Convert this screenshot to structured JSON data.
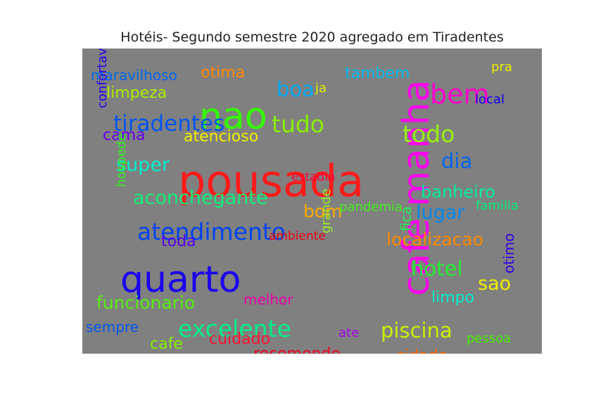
{
  "chart_data": {
    "type": "wordcloud",
    "title": "Hotéis- Segundo semestre 2020 agregado em Tiradentes",
    "background": "#808080",
    "words": [
      {
        "text": "pousada",
        "color": "#ff1a1a"
      },
      {
        "text": "cafe manha",
        "color": "#ff00ee"
      },
      {
        "text": "quarto",
        "color": "#1a00ee"
      },
      {
        "text": "nao",
        "color": "#33ff00"
      },
      {
        "text": "atendimento",
        "color": "#0044ee"
      },
      {
        "text": "bem",
        "color": "#ff00cc"
      },
      {
        "text": "excelente",
        "color": "#00ee88"
      },
      {
        "text": "tiradentes",
        "color": "#0055ee"
      },
      {
        "text": "tudo",
        "color": "#88ee00"
      },
      {
        "text": "todo",
        "color": "#99ee11"
      },
      {
        "text": "aconchegante",
        "color": "#11ee77"
      },
      {
        "text": "super",
        "color": "#00eecc"
      },
      {
        "text": "localizacao",
        "color": "#ff8800"
      },
      {
        "text": "hotel",
        "color": "#22ee33"
      },
      {
        "text": "piscina",
        "color": "#ccee00"
      },
      {
        "text": "funcionario",
        "color": "#55ee11"
      },
      {
        "text": "boa",
        "color": "#00a8ee"
      },
      {
        "text": "dia",
        "color": "#0066ee"
      },
      {
        "text": "banheiro",
        "color": "#00ee99"
      },
      {
        "text": "lugar",
        "color": "#0088ee"
      },
      {
        "text": "bom",
        "color": "#ffaa00"
      },
      {
        "text": "sao",
        "color": "#eeee00"
      },
      {
        "text": "atencioso",
        "color": "#eeee00"
      },
      {
        "text": "limpeza",
        "color": "#aaee00"
      },
      {
        "text": "tambem",
        "color": "#00bbee"
      },
      {
        "text": "otima",
        "color": "#ff8800"
      },
      {
        "text": "maravilhoso",
        "color": "#0066ee"
      },
      {
        "text": "toda",
        "color": "#5500ee"
      },
      {
        "text": "cama",
        "color": "#6600ee"
      },
      {
        "text": "cafe",
        "color": "#88ee00"
      },
      {
        "text": "cuidado",
        "color": "#ff1133"
      },
      {
        "text": "recomendo",
        "color": "#ee0022"
      },
      {
        "text": "limpo",
        "color": "#00eecc"
      },
      {
        "text": "cidade",
        "color": "#ff6600"
      },
      {
        "text": "sempre",
        "color": "#0055ee"
      },
      {
        "text": "melhor",
        "color": "#ee00aa"
      },
      {
        "text": "pessoa",
        "color": "#44ee00"
      },
      {
        "text": "ate",
        "color": "#aa00ee"
      },
      {
        "text": "pandemia",
        "color": "#44ee22"
      },
      {
        "text": "familia",
        "color": "#00ee77"
      },
      {
        "text": "estadia",
        "color": "#ff0033"
      },
      {
        "text": "ambiente",
        "color": "#ee0011"
      },
      {
        "text": "local",
        "color": "#1100ee"
      },
      {
        "text": "ja",
        "color": "#ddee00"
      },
      {
        "text": "pra",
        "color": "#eeee00"
      },
      {
        "text": "confortavel",
        "color": "#2200ee"
      },
      {
        "text": "hospede",
        "color": "#33ee22"
      },
      {
        "text": "grande",
        "color": "#99ee22"
      },
      {
        "text": "fica",
        "color": "#22ee55"
      },
      {
        "text": "otimo",
        "color": "#3300ee"
      }
    ]
  }
}
